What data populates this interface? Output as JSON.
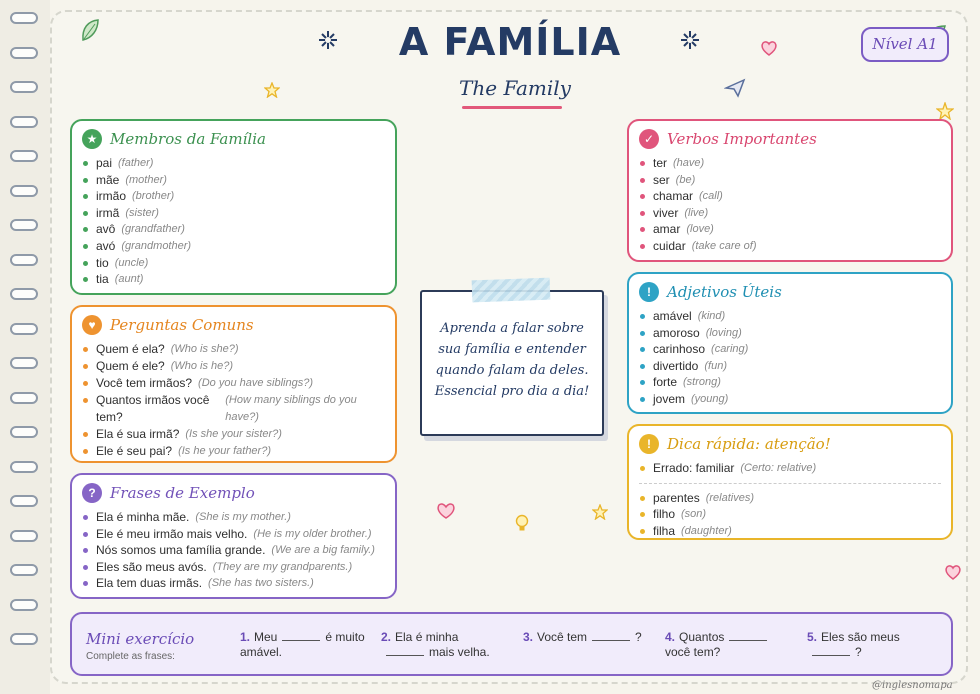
{
  "header": {
    "title": "A FAMÍLIA",
    "subtitle": "The Family",
    "level": "Nível A1"
  },
  "family_members": {
    "title": "Membros da Família",
    "items": [
      {
        "pt": "pai",
        "en": "(father)"
      },
      {
        "pt": "mãe",
        "en": "(mother)"
      },
      {
        "pt": "irmão",
        "en": "(brother)"
      },
      {
        "pt": "irmã",
        "en": "(sister)"
      },
      {
        "pt": "avô",
        "en": "(grandfather)"
      },
      {
        "pt": "avó",
        "en": "(grandmother)"
      },
      {
        "pt": "tio",
        "en": "(uncle)"
      },
      {
        "pt": "tia",
        "en": "(aunt)"
      }
    ]
  },
  "common_questions": {
    "title": "Perguntas Comuns",
    "items": [
      {
        "pt": "Quem é ela?",
        "en": "(Who is she?)"
      },
      {
        "pt": "Quem é ele?",
        "en": "(Who is he?)"
      },
      {
        "pt": "Você tem irmãos?",
        "en": "(Do you have siblings?)"
      },
      {
        "pt": "Quantos irmãos você tem?",
        "en": "(How many siblings do you have?)"
      },
      {
        "pt": "Ela é sua irmã?",
        "en": "(Is she your sister?)"
      },
      {
        "pt": "Ele é seu pai?",
        "en": "(Is he your father?)"
      }
    ]
  },
  "example_sentences": {
    "title": "Frases de Exemplo",
    "items": [
      {
        "pt": "Ela é minha mãe.",
        "en": "(She is my mother.)"
      },
      {
        "pt": "Ele é meu irmão mais velho.",
        "en": "(He is my older brother.)"
      },
      {
        "pt": "Nós somos uma família grande.",
        "en": "(We are a big family.)"
      },
      {
        "pt": "Eles são meus avós.",
        "en": "(They are my grandparents.)"
      },
      {
        "pt": "Ela tem duas irmãs.",
        "en": "(She has two sisters.)"
      }
    ]
  },
  "note": {
    "text": "Aprenda a falar sobre sua família e entender quando falam da deles. Essencial pro dia a dia!"
  },
  "important_verbs": {
    "title": "Verbos Importantes",
    "items": [
      {
        "pt": "ter",
        "en": "(have)"
      },
      {
        "pt": "ser",
        "en": "(be)"
      },
      {
        "pt": "chamar",
        "en": "(call)"
      },
      {
        "pt": "viver",
        "en": "(live)"
      },
      {
        "pt": "amar",
        "en": "(love)"
      },
      {
        "pt": "cuidar",
        "en": "(take care of)"
      }
    ]
  },
  "useful_adjectives": {
    "title": "Adjetivos Úteis",
    "items": [
      {
        "pt": "amável",
        "en": "(kind)"
      },
      {
        "pt": "amoroso",
        "en": "(loving)"
      },
      {
        "pt": "carinhoso",
        "en": "(caring)"
      },
      {
        "pt": "divertido",
        "en": "(fun)"
      },
      {
        "pt": "forte",
        "en": "(strong)"
      },
      {
        "pt": "jovem",
        "en": "(young)"
      }
    ]
  },
  "quick_tip": {
    "title": "Dica rápida: atenção!",
    "warning": {
      "pt": "Errado: familiar",
      "en": "(Certo: relative)"
    },
    "items": [
      {
        "pt": "parentes",
        "en": "(relatives)"
      },
      {
        "pt": "filho",
        "en": "(son)"
      },
      {
        "pt": "filha",
        "en": "(daughter)"
      }
    ]
  },
  "exercise": {
    "title": "Mini exercício",
    "subtitle": "Complete as frases:",
    "items": [
      {
        "num": "1.",
        "before": "Meu",
        "after": "é muito amável."
      },
      {
        "num": "2.",
        "before": "Ela é minha",
        "after": "mais velha."
      },
      {
        "num": "3.",
        "before": "Você tem",
        "after": "?"
      },
      {
        "num": "4.",
        "before": "Quantos",
        "after": "você tem?"
      },
      {
        "num": "5.",
        "before": "Eles são meus",
        "after": "?"
      }
    ]
  },
  "footer": {
    "handle": "@inglesnomapa"
  },
  "icons": {
    "members": "star-icon",
    "questions": "heart-icon",
    "sentences": "question-icon",
    "verbs": "check-icon",
    "adjectives": "exclamation-icon",
    "tip": "exclamation-icon"
  },
  "colors": {
    "navy": "#243b64",
    "green": "#45a35b",
    "orange": "#ee9330",
    "purple": "#8665c6",
    "pink": "#e0557c",
    "teal": "#2ea3c5",
    "yellow": "#e9b52a"
  }
}
